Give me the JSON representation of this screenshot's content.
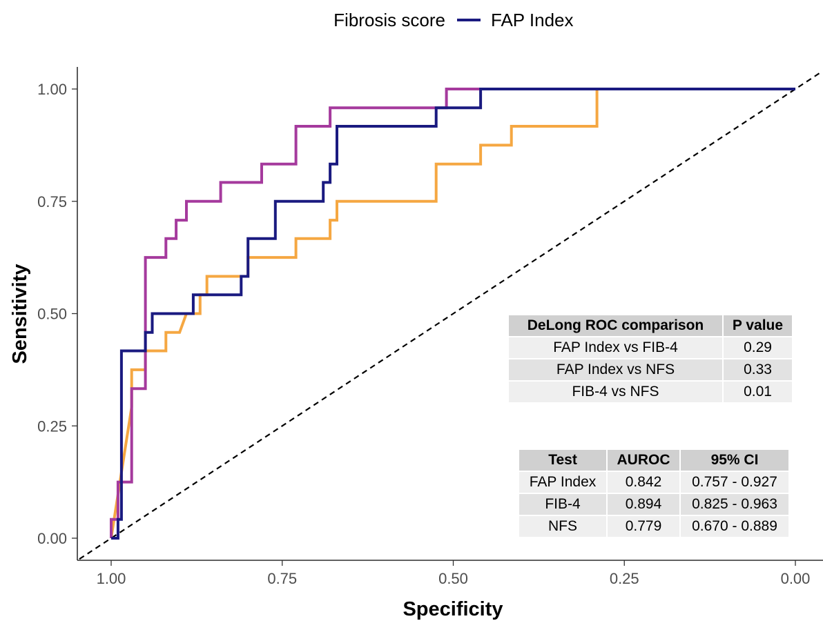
{
  "legend": {
    "title": "Fibrosis score",
    "items": [
      {
        "label": "FAP Index",
        "color": "#1a1a80"
      }
    ]
  },
  "chart_data": {
    "type": "line",
    "xlabel": "Specificity",
    "ylabel": "Sensitivity",
    "x_reversed": true,
    "xlim": [
      1.0,
      0.0
    ],
    "ylim": [
      0.0,
      1.0
    ],
    "xticks": [
      "1.00",
      "0.75",
      "0.50",
      "0.25",
      "0.00"
    ],
    "yticks": [
      "0.00",
      "0.25",
      "0.50",
      "0.75",
      "1.00"
    ],
    "grid": false,
    "reference_line": {
      "style": "dashed",
      "from": [
        1.0,
        0.0
      ],
      "to": [
        0.0,
        1.0
      ]
    },
    "series": [
      {
        "name": "FAP Index",
        "color": "#1a1a80",
        "points": [
          [
            1.0,
            0.0
          ],
          [
            0.99,
            0.0
          ],
          [
            0.99,
            0.042
          ],
          [
            0.985,
            0.042
          ],
          [
            0.985,
            0.417
          ],
          [
            0.95,
            0.417
          ],
          [
            0.95,
            0.458
          ],
          [
            0.94,
            0.458
          ],
          [
            0.94,
            0.5
          ],
          [
            0.88,
            0.5
          ],
          [
            0.88,
            0.542
          ],
          [
            0.81,
            0.542
          ],
          [
            0.81,
            0.583
          ],
          [
            0.8,
            0.583
          ],
          [
            0.8,
            0.667
          ],
          [
            0.76,
            0.667
          ],
          [
            0.76,
            0.75
          ],
          [
            0.69,
            0.75
          ],
          [
            0.69,
            0.792
          ],
          [
            0.68,
            0.792
          ],
          [
            0.68,
            0.833
          ],
          [
            0.67,
            0.833
          ],
          [
            0.67,
            0.917
          ],
          [
            0.525,
            0.917
          ],
          [
            0.525,
            0.958
          ],
          [
            0.46,
            0.958
          ],
          [
            0.46,
            1.0
          ],
          [
            0.0,
            1.0
          ]
        ]
      },
      {
        "color": "#a53a9d",
        "points": [
          [
            1.0,
            0.0
          ],
          [
            1.0,
            0.042
          ],
          [
            0.99,
            0.042
          ],
          [
            0.99,
            0.125
          ],
          [
            0.97,
            0.125
          ],
          [
            0.97,
            0.333
          ],
          [
            0.95,
            0.333
          ],
          [
            0.95,
            0.625
          ],
          [
            0.92,
            0.625
          ],
          [
            0.92,
            0.667
          ],
          [
            0.905,
            0.667
          ],
          [
            0.905,
            0.708
          ],
          [
            0.89,
            0.708
          ],
          [
            0.89,
            0.75
          ],
          [
            0.84,
            0.75
          ],
          [
            0.84,
            0.792
          ],
          [
            0.78,
            0.792
          ],
          [
            0.78,
            0.833
          ],
          [
            0.73,
            0.833
          ],
          [
            0.73,
            0.917
          ],
          [
            0.68,
            0.917
          ],
          [
            0.68,
            0.958
          ],
          [
            0.51,
            0.958
          ],
          [
            0.51,
            1.0
          ],
          [
            0.0,
            1.0
          ]
        ]
      },
      {
        "color": "#f5a742",
        "points": [
          [
            1.0,
            0.0
          ],
          [
            0.97,
            0.292
          ],
          [
            0.97,
            0.375
          ],
          [
            0.95,
            0.375
          ],
          [
            0.95,
            0.417
          ],
          [
            0.92,
            0.417
          ],
          [
            0.92,
            0.458
          ],
          [
            0.9,
            0.458
          ],
          [
            0.89,
            0.5
          ],
          [
            0.87,
            0.5
          ],
          [
            0.87,
            0.542
          ],
          [
            0.86,
            0.542
          ],
          [
            0.86,
            0.583
          ],
          [
            0.8,
            0.583
          ],
          [
            0.8,
            0.625
          ],
          [
            0.73,
            0.625
          ],
          [
            0.73,
            0.667
          ],
          [
            0.68,
            0.667
          ],
          [
            0.68,
            0.708
          ],
          [
            0.67,
            0.708
          ],
          [
            0.67,
            0.75
          ],
          [
            0.525,
            0.75
          ],
          [
            0.525,
            0.833
          ],
          [
            0.46,
            0.833
          ],
          [
            0.46,
            0.875
          ],
          [
            0.415,
            0.875
          ],
          [
            0.415,
            0.917
          ],
          [
            0.29,
            0.917
          ],
          [
            0.29,
            1.0
          ],
          [
            0.0,
            1.0
          ]
        ]
      }
    ]
  },
  "delong_table": {
    "headers": [
      "DeLong ROC comparison",
      "P value"
    ],
    "rows": [
      [
        "FAP Index vs FIB-4",
        "0.29"
      ],
      [
        "FAP Index vs NFS",
        "0.33"
      ],
      [
        "FIB-4 vs NFS",
        "0.01"
      ]
    ]
  },
  "auroc_table": {
    "headers": [
      "Test",
      "AUROC",
      "95% CI"
    ],
    "rows": [
      [
        "FAP Index",
        "0.842",
        "0.757 - 0.927"
      ],
      [
        "FIB-4",
        "0.894",
        "0.825 - 0.963"
      ],
      [
        "NFS",
        "0.779",
        "0.670 - 0.889"
      ]
    ]
  }
}
